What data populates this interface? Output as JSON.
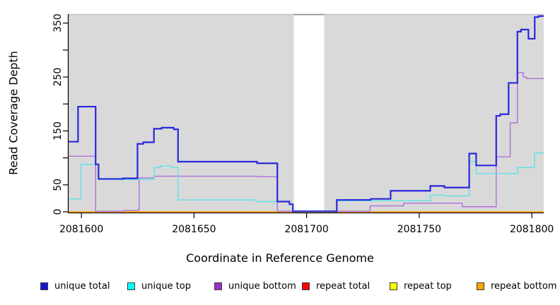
{
  "chart_data": {
    "type": "line",
    "subtype": "step-coverage",
    "title": "",
    "xlabel": "Coordinate in Reference Genome",
    "ylabel": "Read Coverage Depth",
    "xlim": [
      2081594.3,
      2081805.3
    ],
    "ylim": [
      -1.3,
      366.6
    ],
    "grid": false,
    "panel_bg": "#d9d9d9",
    "panel_top_border": "#c3c3c3",
    "gap_region": {
      "x0": 2081694.3,
      "x1": 2081707.8,
      "fill": "#ffffff",
      "top_border": "#8d8d8d"
    },
    "x_ticks": [
      2081600,
      2081650,
      2081700,
      2081750,
      2081800
    ],
    "x_tick_labels": [
      "2081600",
      "2081650",
      "2081700",
      "2081750",
      "2081800"
    ],
    "y_ticks": [
      0,
      50,
      100,
      150,
      200,
      250,
      300,
      350
    ],
    "y_tick_labels": [
      "0",
      "50",
      "",
      "150",
      "",
      "250",
      "",
      "350"
    ],
    "series": [
      {
        "name": "repeat total",
        "color": "#e80000",
        "width": 1.3,
        "steps": [
          [
            2081594.3,
            0
          ]
        ]
      },
      {
        "name": "repeat top",
        "color": "#ffff00",
        "width": 1.3,
        "steps": [
          [
            2081594.3,
            0
          ]
        ]
      },
      {
        "name": "repeat bottom",
        "color": "#ffa500",
        "width": 1.6,
        "steps": [
          [
            2081594.3,
            0
          ]
        ]
      },
      {
        "name": "unique bottom",
        "color": "#b06fd8",
        "width": 1.4,
        "steps": [
          [
            2081594.3,
            103
          ],
          [
            2081606.3,
            1
          ],
          [
            2081618.8,
            2.5
          ],
          [
            2081625.6,
            63
          ],
          [
            2081632.3,
            66
          ],
          [
            2081678.0,
            65
          ],
          [
            2081687.0,
            1
          ],
          [
            2081728.2,
            11
          ],
          [
            2081743.0,
            16
          ],
          [
            2081769.1,
            9.5
          ],
          [
            2081784.2,
            102
          ],
          [
            2081790.4,
            165
          ],
          [
            2081793.6,
            258
          ],
          [
            2081796.2,
            250
          ],
          [
            2081797.6,
            247
          ]
        ]
      },
      {
        "name": "unique top",
        "color": "#5fe2e8",
        "width": 1.4,
        "steps": [
          [
            2081594.3,
            24
          ],
          [
            2081599.8,
            88
          ],
          [
            2081607.6,
            60
          ],
          [
            2081632.3,
            82
          ],
          [
            2081635.1,
            85
          ],
          [
            2081639.8,
            82
          ],
          [
            2081642.9,
            22
          ],
          [
            2081677.5,
            19
          ],
          [
            2081692.4,
            14
          ],
          [
            2081693.9,
            0.5
          ],
          [
            2081713.4,
            20.5
          ],
          [
            2081754.9,
            31
          ],
          [
            2081761.2,
            29.5
          ],
          [
            2081772.2,
            93
          ],
          [
            2081775.3,
            71
          ],
          [
            2081793.6,
            82
          ],
          [
            2081801.2,
            109
          ]
        ]
      },
      {
        "name": "unique total",
        "color": "#2828dc",
        "width": 2.2,
        "steps": [
          [
            2081594.3,
            130
          ],
          [
            2081598.5,
            195
          ],
          [
            2081606.3,
            88
          ],
          [
            2081607.6,
            61
          ],
          [
            2081618.5,
            62
          ],
          [
            2081624.9,
            126
          ],
          [
            2081627.5,
            129
          ],
          [
            2081632.2,
            154
          ],
          [
            2081635.6,
            156
          ],
          [
            2081641.0,
            153
          ],
          [
            2081642.9,
            93
          ],
          [
            2081678.0,
            90
          ],
          [
            2081687.0,
            19
          ],
          [
            2081692.4,
            14
          ],
          [
            2081693.9,
            1
          ],
          [
            2081713.4,
            22
          ],
          [
            2081728.5,
            24
          ],
          [
            2081737.3,
            39
          ],
          [
            2081754.9,
            48
          ],
          [
            2081761.2,
            45
          ],
          [
            2081772.2,
            108
          ],
          [
            2081775.3,
            86
          ],
          [
            2081784.2,
            178
          ],
          [
            2081786.0,
            181
          ],
          [
            2081789.7,
            239
          ],
          [
            2081793.6,
            334
          ],
          [
            2081795.2,
            338
          ],
          [
            2081798.5,
            321
          ],
          [
            2081801.3,
            361
          ],
          [
            2081803.0,
            363
          ]
        ]
      }
    ],
    "legend": {
      "position": "bottom",
      "items": [
        {
          "label": "unique total",
          "color": "#1515d3"
        },
        {
          "label": "unique top",
          "color": "#00ffff"
        },
        {
          "label": "unique bottom",
          "color": "#9932cc"
        },
        {
          "label": "repeat total",
          "color": "#ff0000"
        },
        {
          "label": "repeat top",
          "color": "#ffff00"
        },
        {
          "label": "repeat bottom",
          "color": "#ffa500"
        }
      ],
      "item_x": [
        57,
        180,
        303,
        427,
        551,
        674
      ]
    }
  }
}
